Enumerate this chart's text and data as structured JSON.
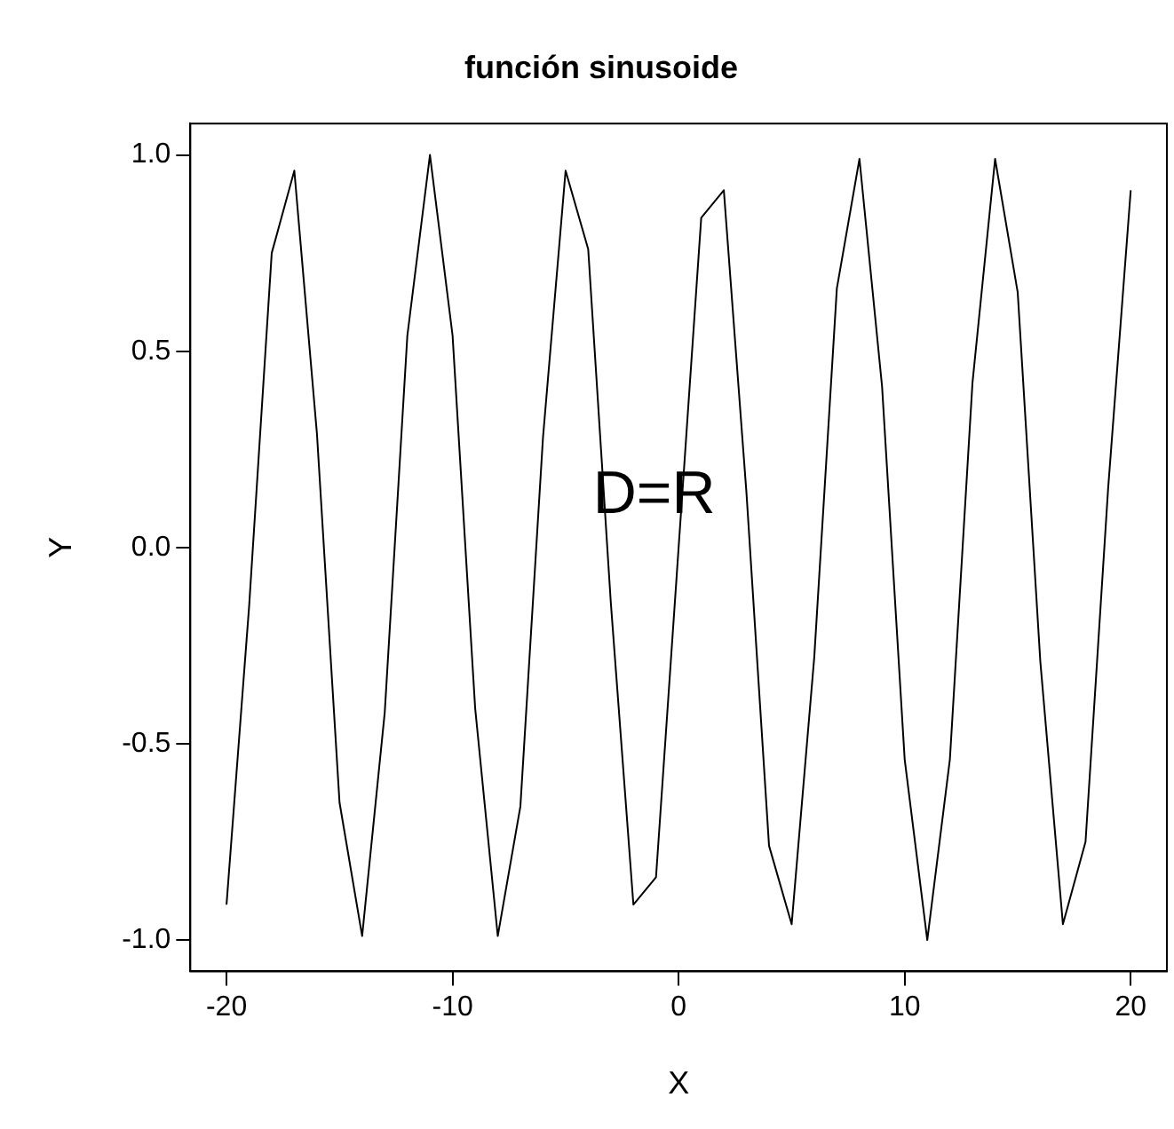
{
  "chart_data": {
    "type": "line",
    "title": "función sinusoide",
    "xlabel": "X",
    "ylabel": "Y",
    "x": [
      -20,
      -19,
      -18,
      -17,
      -16,
      -15,
      -14,
      -13,
      -12,
      -11,
      -10,
      -9,
      -8,
      -7,
      -6,
      -5,
      -4,
      -3,
      -2,
      -1,
      0,
      1,
      2,
      3,
      4,
      5,
      6,
      7,
      8,
      9,
      10,
      11,
      12,
      13,
      14,
      15,
      16,
      17,
      18,
      19,
      20
    ],
    "series": [
      {
        "color": "#000000",
        "values": [
          -0.91,
          -0.15,
          0.75,
          0.96,
          0.29,
          -0.65,
          -0.99,
          -0.42,
          0.54,
          1.0,
          0.54,
          -0.41,
          -0.99,
          -0.66,
          0.28,
          0.96,
          0.76,
          -0.14,
          -0.91,
          -0.84,
          0,
          0.84,
          0.91,
          0.14,
          -0.76,
          -0.96,
          -0.28,
          0.66,
          0.99,
          0.41,
          -0.54,
          -1.0,
          -0.54,
          0.42,
          0.99,
          0.65,
          -0.29,
          -0.96,
          -0.75,
          0.15,
          0.91
        ]
      }
    ],
    "xlim": [
      -21.6,
      21.6
    ],
    "xticks": [
      -20,
      -10,
      0,
      10,
      20
    ],
    "ylim": [
      -1.08,
      1.08
    ],
    "yticks": [
      {
        "value": -1,
        "label": "-1.0"
      },
      -0.5,
      {
        "value": 0,
        "label": "0.0"
      },
      0.5,
      {
        "value": 1,
        "label": "1.0"
      }
    ],
    "grid": false,
    "legend": false,
    "marker": "none",
    "line_style": "solid",
    "annotations": [
      "D=R"
    ]
  }
}
